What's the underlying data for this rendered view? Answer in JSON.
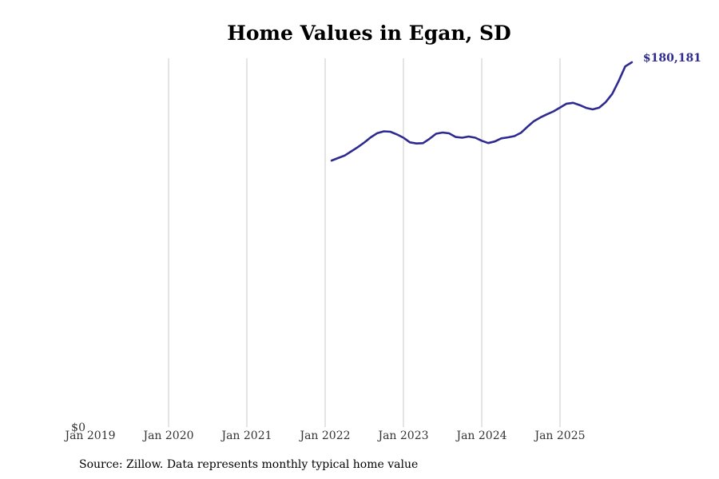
{
  "chart_data": {
    "type": "line",
    "title": "Home Values in Egan, SD",
    "xlabel": "",
    "ylabel": "",
    "x_tick_labels": [
      "Jan 2019",
      "Jan 2020",
      "Jan 2021",
      "Jan 2022",
      "Jan 2023",
      "Jan 2024",
      "Jan 2025"
    ],
    "x_tick_years": [
      2019,
      2020,
      2021,
      2022,
      2023,
      2024,
      2025
    ],
    "y_tick_labels": [
      "$0"
    ],
    "xlim": [
      2019.0,
      2026.0
    ],
    "ylim": [
      0,
      180181
    ],
    "grid": "vertical",
    "line_color": "#2e2a8f",
    "series": [
      {
        "name": "Typical home value",
        "x": [
          2022.083,
          2022.167,
          2022.25,
          2022.333,
          2022.417,
          2022.5,
          2022.583,
          2022.667,
          2022.75,
          2022.833,
          2022.917,
          2023.0,
          2023.083,
          2023.167,
          2023.25,
          2023.333,
          2023.417,
          2023.5,
          2023.583,
          2023.667,
          2023.75,
          2023.833,
          2023.917,
          2024.0,
          2024.083,
          2024.167,
          2024.25,
          2024.333,
          2024.417,
          2024.5,
          2024.583,
          2024.667,
          2024.75,
          2024.833,
          2024.917,
          2025.0,
          2025.083,
          2025.167,
          2025.25,
          2025.333,
          2025.417,
          2025.5,
          2025.583,
          2025.667,
          2025.75,
          2025.833,
          2025.917
        ],
        "values": [
          131650,
          132900,
          134140,
          136200,
          138260,
          140570,
          143110,
          145200,
          146090,
          145890,
          144520,
          142920,
          140620,
          140090,
          140250,
          142380,
          144880,
          145470,
          145080,
          143280,
          142920,
          143520,
          142920,
          141410,
          140270,
          141060,
          142590,
          143070,
          143700,
          145340,
          148290,
          151130,
          152950,
          154490,
          155920,
          157820,
          159710,
          160140,
          159040,
          157670,
          156930,
          157750,
          160460,
          164580,
          171010,
          178130,
          180181
        ]
      }
    ],
    "end_label": "$180,181",
    "source": "Source: Zillow. Data represents monthly typical home value"
  }
}
